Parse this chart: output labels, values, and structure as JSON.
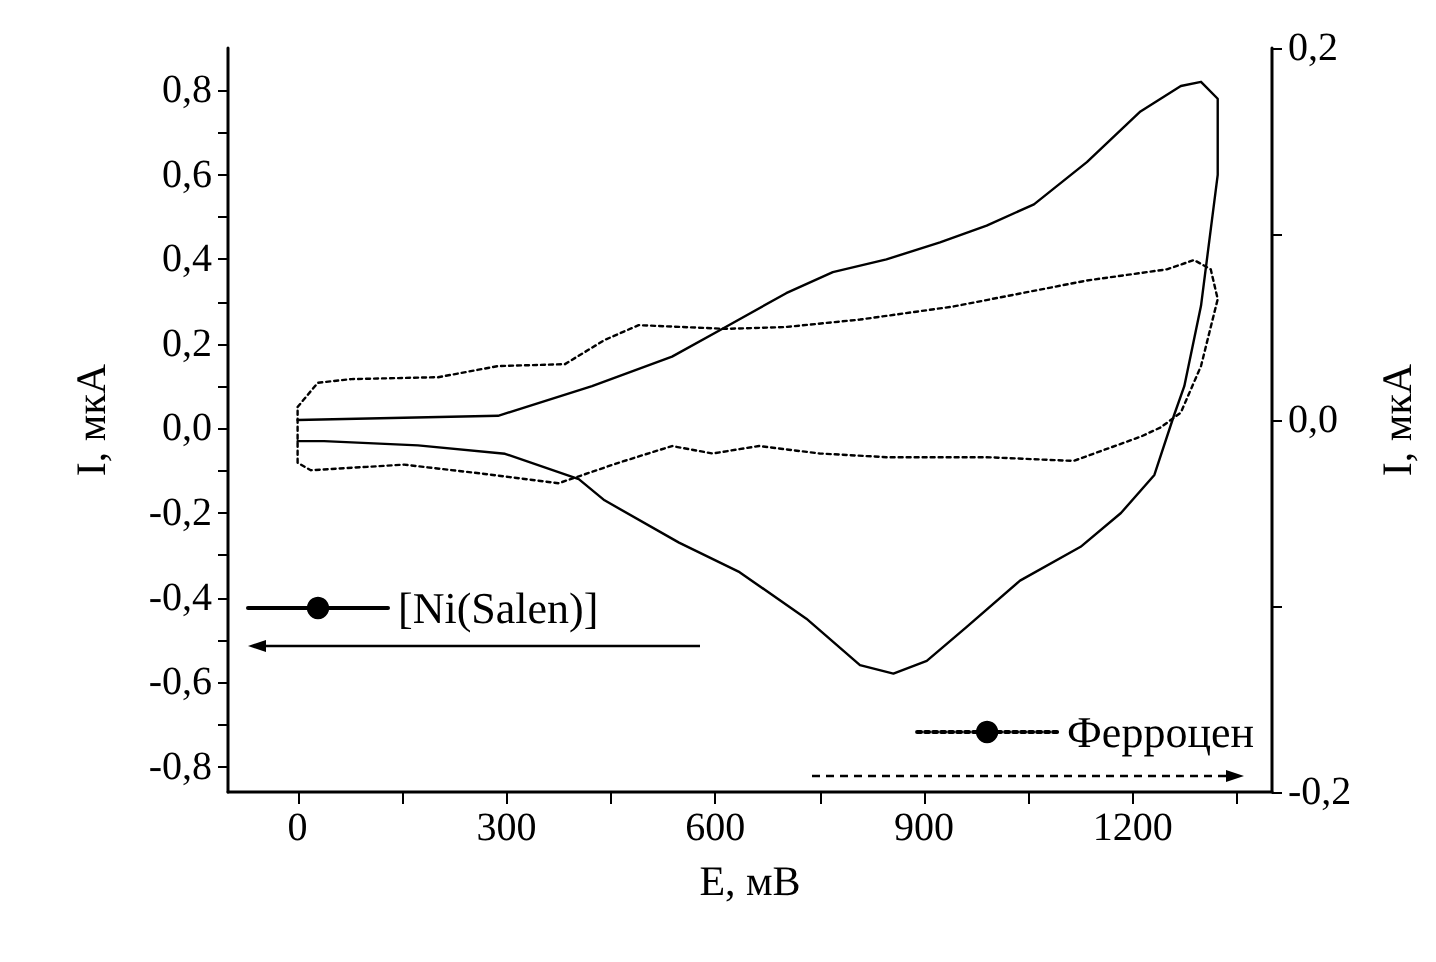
{
  "chart_data": {
    "type": "line",
    "xlabel": "E, мВ",
    "ylabel": "I, мкА",
    "y2label": "I, мкА",
    "xlim": [
      -100,
      1400
    ],
    "xticks": [
      0,
      {
        "value": 150,
        "label": null
      },
      300,
      {
        "value": 450,
        "label": null
      },
      600,
      {
        "value": 750,
        "label": null
      },
      900,
      {
        "value": 1050,
        "label": null
      },
      1200,
      {
        "value": 1350,
        "label": null
      }
    ],
    "ylim": [
      -0.86,
      0.9
    ],
    "yticks": [
      {
        "value": -0.8,
        "label": "-0,8"
      },
      {
        "value": -0.7,
        "label": null
      },
      {
        "value": -0.6,
        "label": "-0,6"
      },
      {
        "value": -0.5,
        "label": null
      },
      {
        "value": -0.4,
        "label": "-0,4"
      },
      {
        "value": -0.3,
        "label": null
      },
      {
        "value": -0.2,
        "label": "-0,2"
      },
      {
        "value": -0.1,
        "label": null
      },
      {
        "value": 0,
        "label": "0,0"
      },
      {
        "value": 0.1,
        "label": null
      },
      {
        "value": 0.2,
        "label": "0,2"
      },
      {
        "value": 0.3,
        "label": null
      },
      {
        "value": 0.4,
        "label": "0,4"
      },
      {
        "value": 0.5,
        "label": null
      },
      {
        "value": 0.6,
        "label": "0,6"
      },
      {
        "value": 0.7,
        "label": null
      },
      {
        "value": 0.8,
        "label": "0,8"
      }
    ],
    "y2lim": [
      -0.2,
      0.2
    ],
    "y2ticks": [
      {
        "value": -0.2,
        "label": "-0,2"
      },
      {
        "value": -0.1,
        "label": null
      },
      {
        "value": 0,
        "label": "0,0"
      },
      {
        "value": 0.1,
        "label": null
      },
      {
        "value": 0.2,
        "label": "0,2"
      }
    ],
    "grid": false,
    "legend": "bottom",
    "marker": "none",
    "series": [
      {
        "name": "[Ni(Salen)]",
        "color": "#000000",
        "line_style": "solid",
        "axis": "y",
        "x": [
          0,
          288,
          423,
          538,
          615,
          702,
          769,
          846,
          923,
          990,
          1058,
          1134,
          1211,
          1269,
          1298,
          1322,
          1322,
          1298,
          1274,
          1259,
          1231,
          1183,
          1125,
          1038,
          961,
          904,
          856,
          808,
          731,
          635,
          548,
          441,
          404,
          298,
          173,
          38,
          0
        ],
        "values": [
          0.02,
          0.03,
          0.1,
          0.17,
          0.24,
          0.32,
          0.37,
          0.4,
          0.44,
          0.48,
          0.53,
          0.63,
          0.75,
          0.81,
          0.82,
          0.78,
          0.6,
          0.29,
          0.1,
          0.03,
          -0.11,
          -0.2,
          -0.28,
          -0.36,
          -0.47,
          -0.55,
          -0.58,
          -0.56,
          -0.45,
          -0.34,
          -0.27,
          -0.17,
          -0.12,
          -0.06,
          -0.04,
          -0.03,
          -0.03
        ]
      },
      {
        "name": "Ферроцен",
        "color": "#000000",
        "line_style": "dotted",
        "axis": "y2",
        "x": [
          0,
          29,
          77,
          202,
          288,
          384,
          441,
          490,
          615,
          702,
          808,
          942,
          1038,
          1134,
          1249,
          1288,
          1312,
          1322,
          1298,
          1269,
          1240,
          1211,
          1115,
          990,
          846,
          750,
          663,
          596,
          538,
          461,
          375,
          269,
          153,
          19,
          0,
          0
        ],
        "values": [
          0.007,
          0.02,
          0.022,
          0.023,
          0.029,
          0.03,
          0.043,
          0.051,
          0.049,
          0.05,
          0.054,
          0.061,
          0.068,
          0.075,
          0.081,
          0.086,
          0.081,
          0.065,
          0.029,
          0.004,
          -0.004,
          -0.009,
          -0.022,
          -0.02,
          -0.02,
          -0.018,
          -0.014,
          -0.018,
          -0.014,
          -0.023,
          -0.034,
          -0.029,
          -0.024,
          -0.027,
          -0.023,
          0.005
        ]
      }
    ]
  }
}
